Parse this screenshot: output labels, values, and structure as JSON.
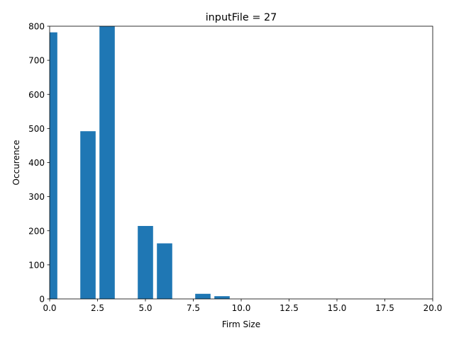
{
  "chart_data": {
    "type": "bar",
    "title": "inputFile = 27",
    "xlabel": "Firm Size",
    "ylabel": "Occurence",
    "xlim": [
      0,
      20
    ],
    "ylim": [
      0,
      800
    ],
    "x_ticks": [
      "0.0",
      "2.5",
      "5.0",
      "7.5",
      "10.0",
      "12.5",
      "15.0",
      "17.5",
      "20.0"
    ],
    "y_ticks": [
      "0",
      "100",
      "200",
      "300",
      "400",
      "500",
      "600",
      "700",
      "800"
    ],
    "bar_color": "#1f77b4",
    "bar_width": 0.8,
    "x": [
      0,
      2,
      3,
      5,
      6,
      8,
      9
    ],
    "values": [
      782,
      492,
      800,
      214,
      163,
      15,
      8
    ],
    "grid": false,
    "legend": "none"
  }
}
